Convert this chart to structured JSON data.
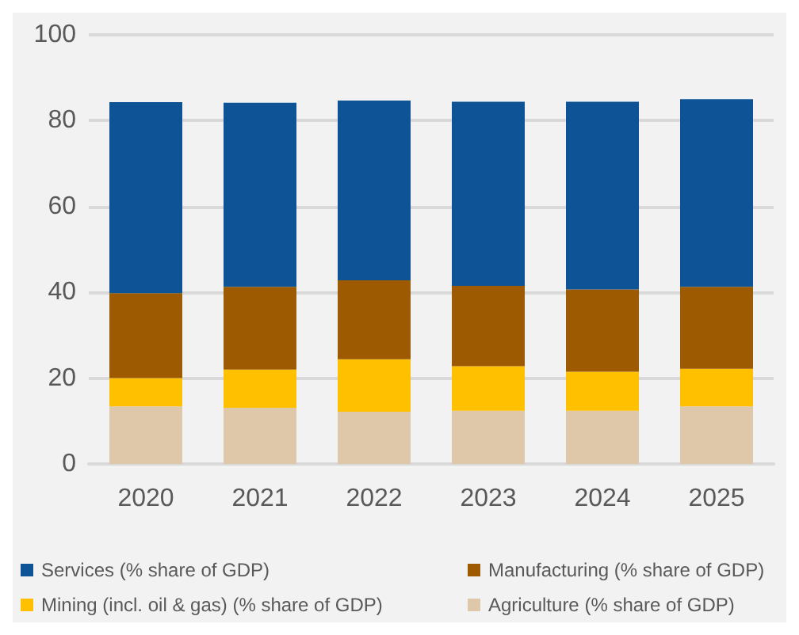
{
  "chart_data": {
    "type": "bar",
    "stacked": true,
    "categories": [
      "2020",
      "2021",
      "2022",
      "2023",
      "2024",
      "2025"
    ],
    "series": [
      {
        "name": "Agriculture (% share of GDP)",
        "color": "#dfc8aa",
        "values": [
          13.4,
          13.1,
          12.2,
          12.4,
          12.4,
          13.4
        ]
      },
      {
        "name": "Mining (incl. oil & gas) (% share of GDP)",
        "color": "#ffc000",
        "values": [
          6.6,
          8.9,
          12.2,
          10.4,
          9.1,
          8.8
        ]
      },
      {
        "name": "Manufacturing (% share of GDP)",
        "color": "#9e5a00",
        "values": [
          19.8,
          19.3,
          18.4,
          18.7,
          19.2,
          19.1
        ]
      },
      {
        "name": "Services (% share of GDP)",
        "color": "#0e5396",
        "values": [
          44.5,
          42.9,
          41.9,
          42.9,
          43.7,
          43.7
        ]
      }
    ],
    "ylim": [
      0,
      100
    ],
    "yticks": [
      0,
      20,
      40,
      60,
      80,
      100
    ],
    "grid": "y",
    "legend": "bottom"
  }
}
